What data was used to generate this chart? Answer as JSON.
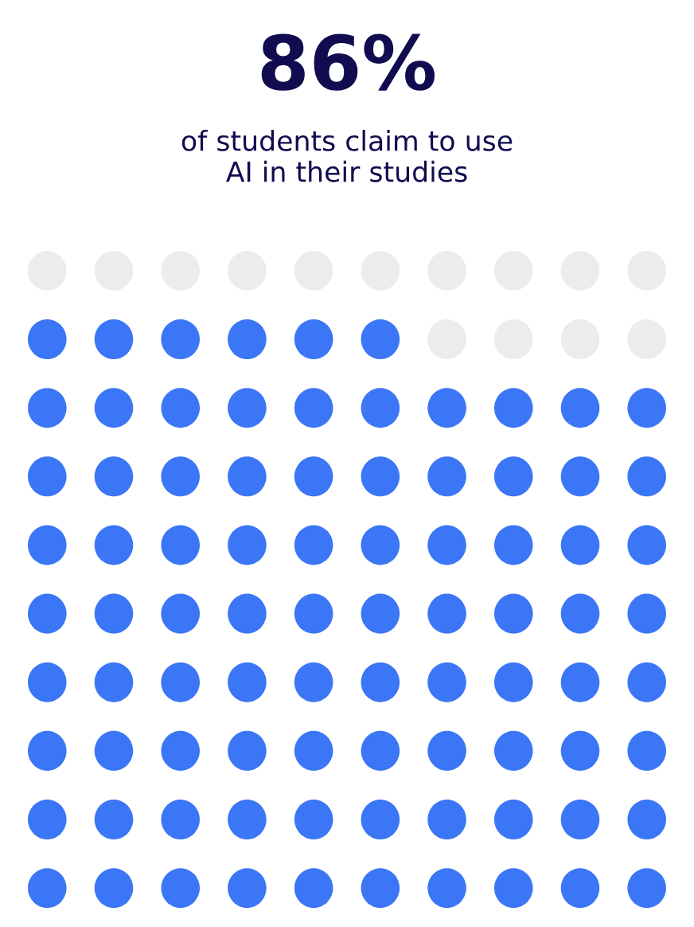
{
  "chart_data": {
    "type": "other",
    "subtitle": "of students claim to use\nAI in their studies",
    "values": [
      86
    ],
    "value_labels": [
      "86%"
    ],
    "color": "#3b76f6"
  }
}
